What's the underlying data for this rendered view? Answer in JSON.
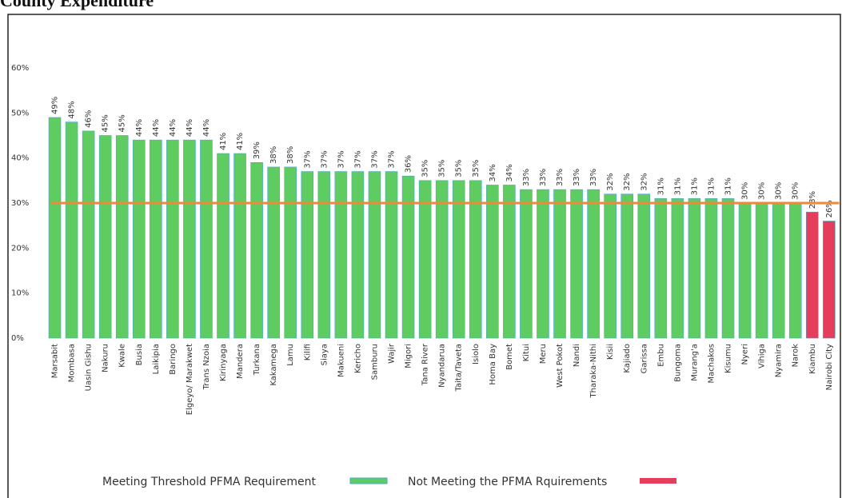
{
  "chart_data": {
    "type": "bar",
    "title": "County Expenditure",
    "categories": [
      "Marsabit",
      "Mombasa",
      "Uasin Gishu",
      "Nakuru",
      "Kwale",
      "Busia",
      "Laikipia",
      "Baringo",
      "Elgeyo/ Marakwet",
      "Trans Nzoia",
      "Kirinyaga",
      "Mandera",
      "Turkana",
      "Kakamega",
      "Lamu",
      "Kilifi",
      "Siaya",
      "Makueni",
      "Kericho",
      "Samburu",
      "Wajir",
      "Migori",
      "Tana River",
      "Nyandarua",
      "Taita/Taveta",
      "Isiolo",
      "Homa Bay",
      "Bomet",
      "Kitui",
      "Meru",
      "West Pokot",
      "Nandi",
      "Tharaka-Nithi",
      "Kisii",
      "Kajiado",
      "Garissa",
      "Embu",
      "Bungoma",
      "Murang'a",
      "Machakos",
      "Kisumu",
      "Nyeri",
      "Vihiga",
      "Nyamira",
      "Narok",
      "Kiambu",
      "Nairobi City"
    ],
    "values": [
      49,
      48,
      46,
      45,
      45,
      44,
      44,
      44,
      44,
      44,
      41,
      41,
      39,
      38,
      38,
      37,
      37,
      37,
      37,
      37,
      37,
      36,
      35,
      35,
      35,
      35,
      34,
      34,
      33,
      33,
      33,
      33,
      33,
      32,
      32,
      32,
      31,
      31,
      31,
      31,
      31,
      30,
      30,
      30,
      30,
      28,
      26
    ],
    "value_labels": [
      "49%",
      "48%",
      "46%",
      "45%",
      "45%",
      "44%",
      "44%",
      "44%",
      "44%",
      "44%",
      "41%",
      "41%",
      "39%",
      "38%",
      "38%",
      "37%",
      "37%",
      "37%",
      "37%",
      "37%",
      "37%",
      "36%",
      "35%",
      "35%",
      "35%",
      "35%",
      "34%",
      "34%",
      "33%",
      "33%",
      "33%",
      "33%",
      "33%",
      "32%",
      "32%",
      "32%",
      "31%",
      "31%",
      "31%",
      "31%",
      "31%",
      "30%",
      "30%",
      "30%",
      "30%",
      "28%",
      "26%"
    ],
    "threshold": 30,
    "threshold_color": "#f0883a",
    "legend": [
      {
        "name": "Meeting Threshold PFMA Requirement",
        "color": "#5fcc62"
      },
      {
        "name": "Not Meeting the PFMA Rquirements",
        "color": "#e53d5c"
      }
    ],
    "ylim": [
      0,
      60
    ],
    "yticks": [
      {
        "value": 0,
        "label": "0%"
      },
      {
        "value": 10,
        "label": "10%"
      },
      {
        "value": 20,
        "label": "20%"
      },
      {
        "value": 30,
        "label": "30%"
      },
      {
        "value": 40,
        "label": "40%"
      },
      {
        "value": 50,
        "label": "50%"
      },
      {
        "value": 60,
        "label": "60%"
      }
    ],
    "grid": false
  }
}
